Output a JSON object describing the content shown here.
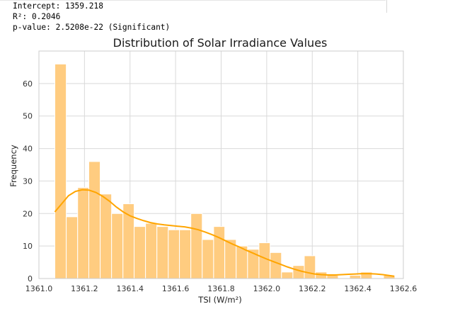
{
  "output": {
    "intercept_line": "Intercept: 1359.218",
    "r2_line": "R²: 0.2046",
    "pvalue_line": "p-value: 2.5208e-22 (Significant)"
  },
  "colors": {
    "bar_fill": "#ffcc80",
    "bar_edge": "#ffffff",
    "kde_line": "#ffa500",
    "grid": "#d9d9d9",
    "frame": "#cccccc"
  },
  "chart_data": {
    "type": "bar",
    "subtype": "histogram_with_kde",
    "title": "Distribution of Solar Irradiance Values",
    "xlabel": "TSI (W/m²)",
    "ylabel": "Frequency",
    "xlim": [
      1361.0,
      1362.6
    ],
    "ylim": [
      0,
      70
    ],
    "xticks": [
      1361.0,
      1361.2,
      1361.4,
      1361.6,
      1361.8,
      1362.0,
      1362.2,
      1362.4,
      1362.6
    ],
    "xtick_labels": [
      "1361.0",
      "1361.2",
      "1361.4",
      "1361.6",
      "1361.8",
      "1362.0",
      "1362.2",
      "1362.4",
      "1362.6"
    ],
    "yticks": [
      0,
      10,
      20,
      30,
      40,
      50,
      60
    ],
    "ytick_labels": [
      "0",
      "10",
      "20",
      "30",
      "40",
      "50",
      "60"
    ],
    "grid": true,
    "bin_edges": [
      1361.07,
      1361.12,
      1361.17,
      1361.219,
      1361.269,
      1361.319,
      1361.369,
      1361.418,
      1361.468,
      1361.518,
      1361.568,
      1361.617,
      1361.667,
      1361.717,
      1361.767,
      1361.816,
      1361.866,
      1361.916,
      1361.966,
      1362.015,
      1362.065,
      1362.115,
      1362.165,
      1362.214,
      1362.264,
      1362.314,
      1362.364,
      1362.413,
      1362.463,
      1362.513,
      1362.563
    ],
    "counts": [
      66,
      19,
      28,
      36,
      26,
      20,
      23,
      16,
      17,
      16,
      15,
      15,
      20,
      12,
      16,
      12,
      10,
      9,
      11,
      8,
      2,
      4,
      7,
      2,
      1,
      0,
      1,
      2,
      0,
      1
    ],
    "kde": {
      "x": [
        1361.07,
        1361.1,
        1361.13,
        1361.16,
        1361.19,
        1361.22,
        1361.25,
        1361.28,
        1361.31,
        1361.34,
        1361.37,
        1361.4,
        1361.43,
        1361.46,
        1361.49,
        1361.52,
        1361.55,
        1361.58,
        1361.61,
        1361.64,
        1361.67,
        1361.7,
        1361.73,
        1361.76,
        1361.79,
        1361.82,
        1361.85,
        1361.88,
        1361.91,
        1361.94,
        1361.97,
        1362.0,
        1362.03,
        1362.06,
        1362.09,
        1362.12,
        1362.15,
        1362.18,
        1362.21,
        1362.24,
        1362.27,
        1362.3,
        1362.33,
        1362.36,
        1362.39,
        1362.42,
        1362.45,
        1362.48,
        1362.51,
        1362.54,
        1362.56
      ],
      "y": [
        20.5,
        23.0,
        25.5,
        26.8,
        27.3,
        27.2,
        26.5,
        25.3,
        23.8,
        22.0,
        20.5,
        19.3,
        18.5,
        17.8,
        17.2,
        16.8,
        16.5,
        16.3,
        16.1,
        15.9,
        15.5,
        15.0,
        14.3,
        13.5,
        12.6,
        11.6,
        10.6,
        9.7,
        8.7,
        7.8,
        6.9,
        6.0,
        5.2,
        4.4,
        3.6,
        2.9,
        2.3,
        1.8,
        1.4,
        1.2,
        1.1,
        1.1,
        1.2,
        1.3,
        1.4,
        1.5,
        1.5,
        1.4,
        1.2,
        0.9,
        0.7
      ]
    }
  }
}
